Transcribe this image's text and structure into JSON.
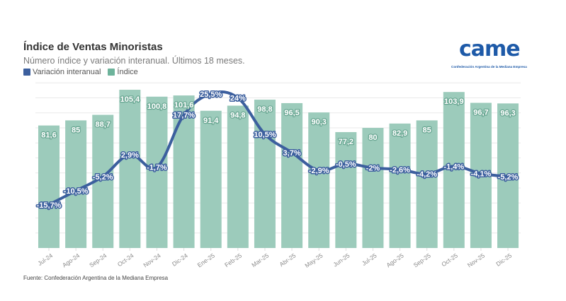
{
  "header": {
    "title": "Índice de Ventas Minoristas",
    "subtitle": "Número índice y variación interanual. Últimos 18 meses."
  },
  "logo": {
    "wordmark": "came",
    "tagline": "Confederación Argentina de la Mediana Empresa",
    "color": "#1e5aa8"
  },
  "footer": {
    "source": "Fuente: Confederación Argentina de la Mediana Empresa"
  },
  "chart_data": {
    "type": "bar",
    "title": "Índice de Ventas Minoristas",
    "subtitle": "Número índice y variación interanual. Últimos 18 meses.",
    "legend_position": "top-left",
    "grid": true,
    "categories": [
      "Jul-24",
      "Ago-24",
      "Sep-24",
      "Oct-24",
      "Nov-24",
      "Dic-24",
      "Ene-25",
      "Feb-25",
      "Mar-25",
      "Abr-25",
      "May-25",
      "Jun-25",
      "Jul-25",
      "Ago-25",
      "Sep-25",
      "Oct-25",
      "Nov-25",
      "Dic-25"
    ],
    "series": [
      {
        "name": "Variación interanual",
        "type": "line",
        "color": "#3c5f9e",
        "values": [
          -15.7,
          -10.5,
          -5.2,
          2.9,
          -1.7,
          17.7,
          25.5,
          24,
          10.5,
          3.7,
          -2.9,
          -0.5,
          -2,
          -2.6,
          -4.2,
          -1.4,
          -4.1,
          -5.2
        ],
        "labels": [
          "-15,7%",
          "-10,5%",
          "-5,2%",
          "2,9%",
          "-1,7%",
          "17,7%",
          "25,5%",
          "24%",
          "10,5%",
          "3,7%",
          "-2,9%",
          "-0,5%",
          "-2%",
          "-2,6%",
          "-4,2%",
          "-1,4%",
          "-4,1%",
          "-5,2%"
        ]
      },
      {
        "name": "Índice",
        "type": "bar",
        "color": "#6db39b",
        "bar_color": "#9ccbbb",
        "values": [
          81.6,
          85,
          88.7,
          105.4,
          100.8,
          101.6,
          91.4,
          94.8,
          98.8,
          96.5,
          90.3,
          77.2,
          80,
          82.9,
          85,
          103.9,
          96.7,
          96.3
        ],
        "labels": [
          "81,6",
          "85",
          "88,7",
          "105,4",
          "100,8",
          "101,6",
          "91,4",
          "94,8",
          "98,8",
          "96,5",
          "90,3",
          "77,2",
          "80",
          "82,9",
          "85",
          "103,9",
          "96,7",
          "96,3"
        ]
      }
    ],
    "ylim_index": [
      0,
      110
    ],
    "ylim_variation": [
      -32,
      31
    ]
  }
}
